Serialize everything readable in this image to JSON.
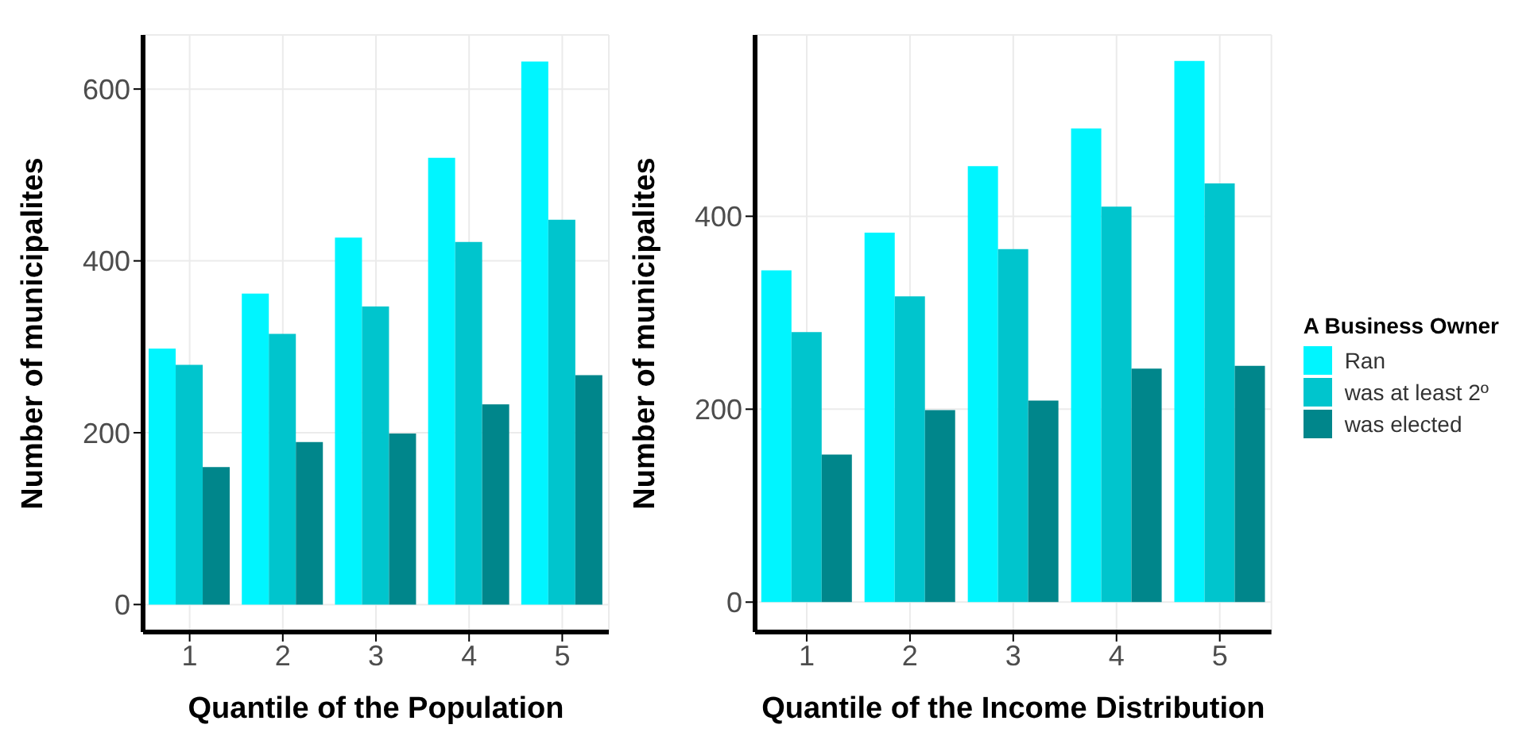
{
  "chart_data": [
    {
      "type": "bar",
      "xlabel": "Quantile of the Population",
      "ylabel": "Number of municipalites",
      "categories": [
        "1",
        "2",
        "3",
        "4",
        "5"
      ],
      "series": [
        {
          "color": "#00f5ff",
          "values": [
            298,
            362,
            427,
            520,
            632
          ]
        },
        {
          "color": "#00c5cd",
          "values": [
            279,
            315,
            347,
            422,
            448
          ]
        },
        {
          "color": "#00868b",
          "values": [
            160,
            189,
            199,
            233,
            267
          ]
        }
      ],
      "ylim": [
        -32,
        663
      ],
      "yticks": [
        0,
        200,
        400,
        600
      ],
      "grid": true,
      "legend": false
    },
    {
      "type": "bar",
      "xlabel": "Quantile of the Income Distribution",
      "ylabel": "Number of municipalites",
      "legend_title": "A Business Owner",
      "categories": [
        "1",
        "2",
        "3",
        "4",
        "5"
      ],
      "series": [
        {
          "name": "Ran",
          "color": "#00f5ff",
          "values": [
            344,
            383,
            452,
            491,
            561
          ]
        },
        {
          "name": "was at least 2º",
          "color": "#00c5cd",
          "values": [
            280,
            317,
            366,
            410,
            434
          ]
        },
        {
          "name": "was elected",
          "color": "#00868b",
          "values": [
            153,
            199,
            209,
            242,
            245
          ]
        }
      ],
      "ylim": [
        -31,
        588
      ],
      "yticks": [
        0,
        200,
        400
      ],
      "grid": true,
      "legend": "right"
    }
  ]
}
